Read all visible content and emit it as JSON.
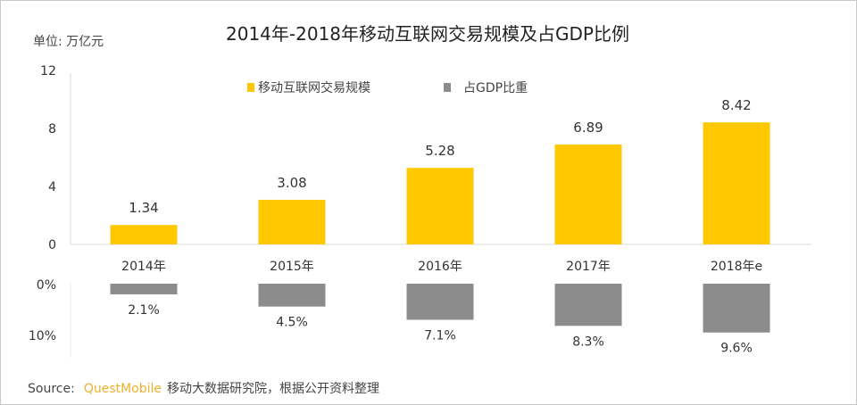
{
  "chart_data": [
    {
      "type": "bar",
      "title": "2014年-2018年移动互联网交易规模及占GDP比例",
      "unit_label": "单位: 万亿元",
      "categories": [
        "2014年",
        "2015年",
        "2016年",
        "2017年",
        "2018年e"
      ],
      "series": [
        {
          "name": "移动互联网交易规模",
          "values": [
            1.34,
            3.08,
            5.28,
            6.89,
            8.42
          ],
          "labels": [
            "1.34",
            "3.08",
            "5.28",
            "6.89",
            "8.42"
          ],
          "color": "#FFC800"
        }
      ],
      "ylim": [
        0,
        12
      ],
      "yticks": [
        "0",
        "4",
        "8",
        "12"
      ],
      "ytick_values": [
        0,
        4,
        8,
        12
      ],
      "grid": false,
      "legend": "top"
    },
    {
      "type": "bar",
      "orientation": "downward",
      "categories": [
        "2014年",
        "2015年",
        "2016年",
        "2017年",
        "2018年e"
      ],
      "series": [
        {
          "name": "占GDP比重",
          "values": [
            2.1,
            4.5,
            7.1,
            8.3,
            9.6
          ],
          "labels": [
            "2.1%",
            "4.5%",
            "7.1%",
            "8.3%",
            "9.6%"
          ],
          "color": "#8C8C8C"
        }
      ],
      "ylim": [
        0,
        10
      ],
      "yticks": [
        "0%",
        "10%"
      ],
      "ytick_values": [
        0,
        10
      ],
      "grid": false
    }
  ],
  "source": {
    "prefix": "Source:",
    "brand": "QuestMobile",
    "text": "移动大数据研究院，根据公开资料整理"
  }
}
